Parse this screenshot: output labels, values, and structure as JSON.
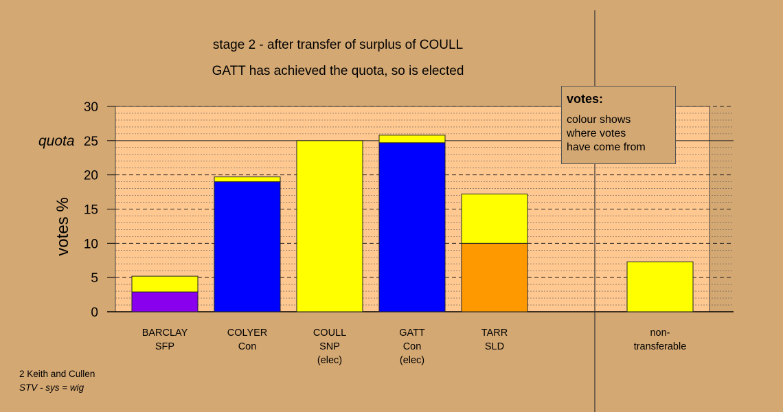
{
  "titles": {
    "line1": "stage 2 - after transfer of surplus of COULL",
    "line2": "GATT has achieved the quota, so is elected"
  },
  "legend": {
    "heading": "votes:",
    "lines": [
      "colour shows",
      "where votes",
      "have come from"
    ]
  },
  "footer": {
    "line1": "2 Keith and Cullen",
    "line2": "STV - sys = wig"
  },
  "chart_data": {
    "type": "bar",
    "stacked": true,
    "ylabel": "votes %",
    "ylim": [
      0,
      30
    ],
    "yticks": [
      0,
      5,
      10,
      15,
      20,
      25,
      30
    ],
    "quota": {
      "label": "quota",
      "value": 25
    },
    "categories": [
      {
        "name": "BARCLAY",
        "party": "SFP",
        "note": ""
      },
      {
        "name": "COLYER",
        "party": "Con",
        "note": ""
      },
      {
        "name": "COULL",
        "party": "SNP",
        "note": "(elec)"
      },
      {
        "name": "GATT",
        "party": "Con",
        "note": "(elec)"
      },
      {
        "name": "TARR",
        "party": "SLD",
        "note": ""
      },
      {
        "name": "non-",
        "party": "transferable",
        "note": ""
      }
    ],
    "bars": [
      {
        "segments": [
          {
            "value": 2.9,
            "color": "#8800ee"
          },
          {
            "value": 2.3,
            "color": "#ffff00"
          }
        ]
      },
      {
        "segments": [
          {
            "value": 19.0,
            "color": "#0000ff"
          },
          {
            "value": 0.7,
            "color": "#ffff00"
          }
        ]
      },
      {
        "segments": [
          {
            "value": 25.0,
            "color": "#ffff00"
          }
        ]
      },
      {
        "segments": [
          {
            "value": 24.7,
            "color": "#0000ff"
          },
          {
            "value": 1.1,
            "color": "#ffff00"
          }
        ]
      },
      {
        "segments": [
          {
            "value": 10.0,
            "color": "#ff9900"
          },
          {
            "value": 7.2,
            "color": "#ffff00"
          }
        ]
      },
      {
        "segments": [
          {
            "value": 7.3,
            "color": "#ffff00"
          }
        ]
      }
    ],
    "colors": {
      "background": "#d4a873",
      "plot_background": "#ffc890"
    }
  }
}
